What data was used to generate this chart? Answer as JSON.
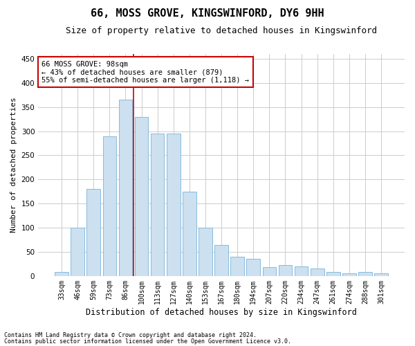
{
  "title": "66, MOSS GROVE, KINGSWINFORD, DY6 9HH",
  "subtitle": "Size of property relative to detached houses in Kingswinford",
  "xlabel": "Distribution of detached houses by size in Kingswinford",
  "ylabel": "Number of detached properties",
  "footnote1": "Contains HM Land Registry data © Crown copyright and database right 2024.",
  "footnote2": "Contains public sector information licensed under the Open Government Licence v3.0.",
  "categories": [
    "33sqm",
    "46sqm",
    "59sqm",
    "73sqm",
    "86sqm",
    "100sqm",
    "113sqm",
    "127sqm",
    "140sqm",
    "153sqm",
    "167sqm",
    "180sqm",
    "194sqm",
    "207sqm",
    "220sqm",
    "234sqm",
    "247sqm",
    "261sqm",
    "274sqm",
    "288sqm",
    "301sqm"
  ],
  "values": [
    8,
    100,
    180,
    290,
    365,
    330,
    295,
    295,
    175,
    100,
    65,
    40,
    35,
    18,
    22,
    20,
    15,
    8,
    5,
    8,
    5
  ],
  "bar_color": "#cce0f0",
  "bar_edge_color": "#88bbdd",
  "vline_color": "#cc0000",
  "vline_pos": 4.5,
  "annotation_line1": "66 MOSS GROVE: 98sqm",
  "annotation_line2": "← 43% of detached houses are smaller (879)",
  "annotation_line3": "55% of semi-detached houses are larger (1,118) →",
  "annotation_box_color": "#ffffff",
  "annotation_box_edge": "#cc0000",
  "ylim": [
    0,
    460
  ],
  "yticks": [
    0,
    50,
    100,
    150,
    200,
    250,
    300,
    350,
    400,
    450
  ],
  "grid_color": "#cccccc",
  "background_color": "#ffffff",
  "title_fontsize": 11,
  "subtitle_fontsize": 9,
  "tick_fontsize": 7,
  "ylabel_fontsize": 8,
  "xlabel_fontsize": 8.5,
  "annot_fontsize": 7.5,
  "footnote_fontsize": 6
}
